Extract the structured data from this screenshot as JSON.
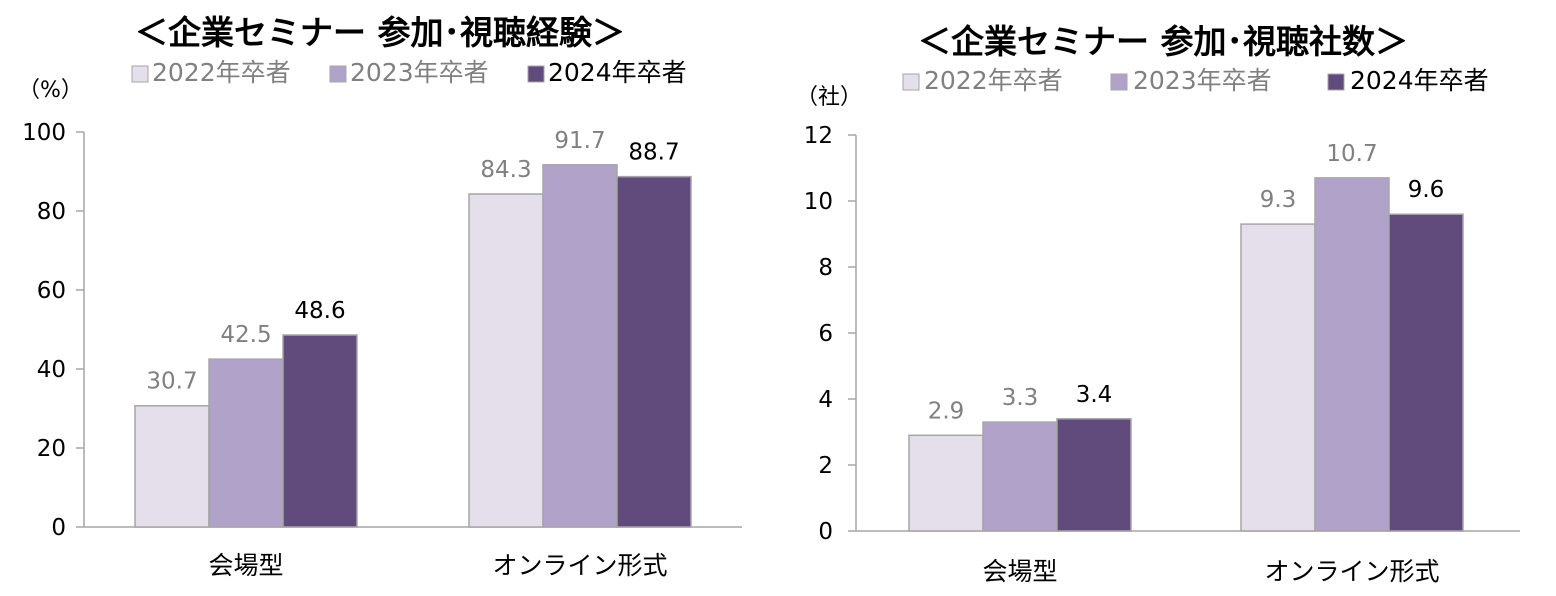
{
  "chart_data": [
    {
      "type": "bar",
      "title": "＜企業セミナー 参加･視聴経験＞",
      "unit": "（%）",
      "categories": [
        "会場型",
        "オンライン形式"
      ],
      "ylim": [
        0,
        100
      ],
      "yticks": [
        0,
        20,
        40,
        60,
        80,
        100
      ],
      "series": [
        {
          "name": "2022年卒者",
          "values": [
            30.7,
            84.3
          ],
          "labels": [
            "30.7",
            "84.3"
          ]
        },
        {
          "name": "2023年卒者",
          "values": [
            42.5,
            91.7
          ],
          "labels": [
            "42.5",
            "91.7"
          ]
        },
        {
          "name": "2024年卒者",
          "values": [
            48.6,
            88.7
          ],
          "labels": [
            "48.6",
            "88.7"
          ]
        }
      ],
      "legend_position": "top"
    },
    {
      "type": "bar",
      "title": "＜企業セミナー 参加･視聴社数＞",
      "unit": "（社）",
      "categories": [
        "会場型",
        "オンライン形式"
      ],
      "ylim": [
        0,
        12
      ],
      "yticks": [
        0,
        2,
        4,
        6,
        8,
        10,
        12
      ],
      "series": [
        {
          "name": "2022年卒者",
          "values": [
            2.9,
            9.3
          ],
          "labels": [
            "2.9",
            "9.3"
          ]
        },
        {
          "name": "2023年卒者",
          "values": [
            3.3,
            10.7
          ],
          "labels": [
            "3.3",
            "10.7"
          ]
        },
        {
          "name": "2024年卒者",
          "values": [
            3.4,
            9.6
          ],
          "labels": [
            "3.4",
            "9.6"
          ]
        }
      ],
      "legend_position": "top"
    }
  ],
  "colors": {
    "series_fill": [
      "#e4dfeb",
      "#b1a2c9",
      "#614b7c"
    ],
    "series_label": [
      "#808080",
      "#808080",
      "#000000"
    ],
    "legend_text": [
      "#808080",
      "#808080",
      "#000000"
    ],
    "axis": "#a6a6a6",
    "bar_outline": "#a6a6a6"
  }
}
